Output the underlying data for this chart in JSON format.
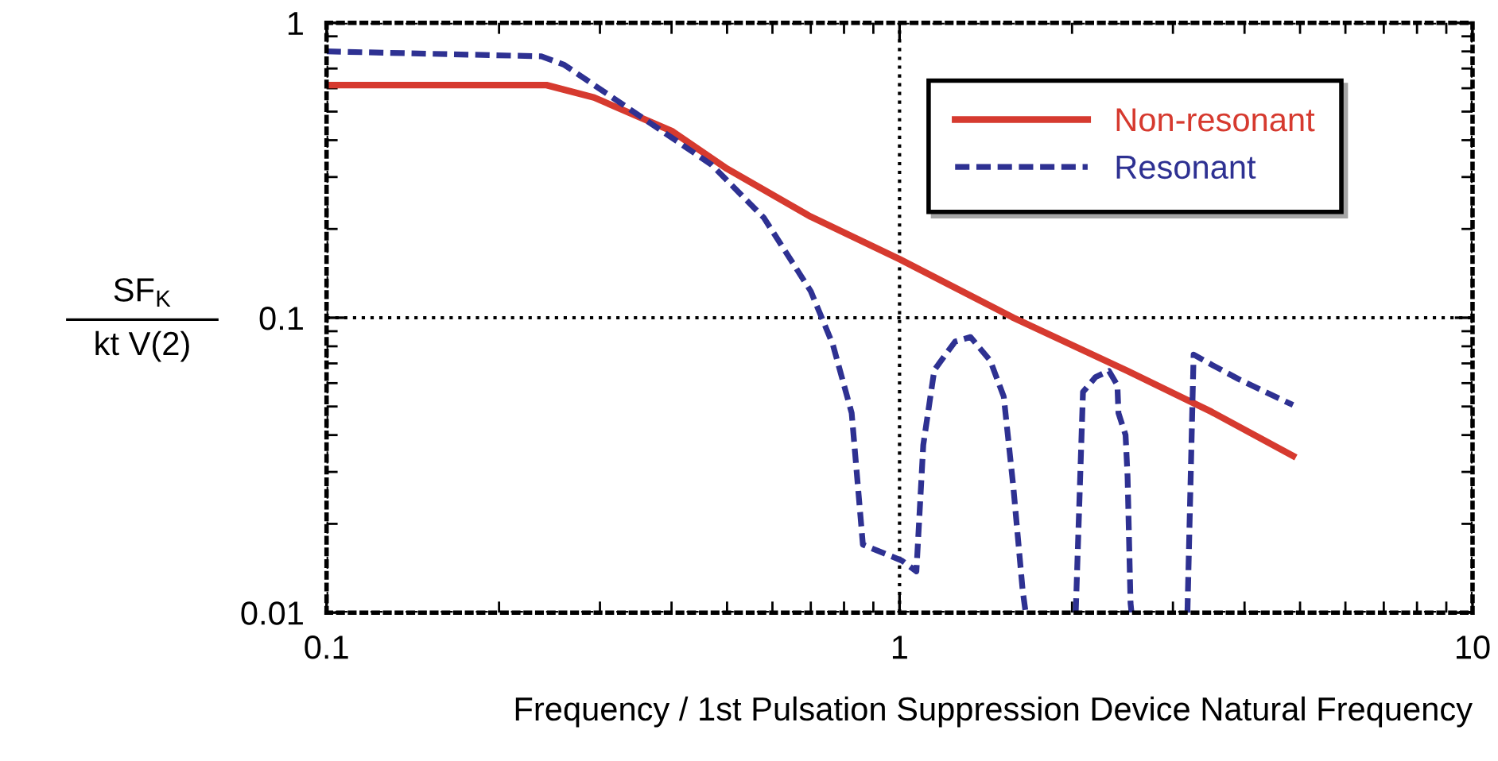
{
  "chart_data": {
    "type": "line",
    "xlabel": "Frequency / 1st Pulsation Suppression Device Natural Frequency",
    "ylabel": "SF$_{K}$\nkt V(2)",
    "log": "xy",
    "xlim": [
      0.1,
      10
    ],
    "ylim": [
      0.01,
      1
    ],
    "xticks": [
      0.1,
      1,
      10
    ],
    "yticks": [
      0.01,
      0.1,
      1
    ],
    "grid": true,
    "legend": "top right",
    "series": [
      {
        "name": "Non-resonant",
        "color": "#d63a2f",
        "line_style": "solid",
        "x": [
          0.1,
          0.242,
          0.293,
          0.4,
          0.5,
          0.7,
          1.0,
          1.58,
          2.5,
          3.5,
          4.86
        ],
        "values": [
          0.615,
          0.615,
          0.558,
          0.43,
          0.32,
          0.22,
          0.158,
          0.1,
          0.066,
          0.048,
          0.034
        ]
      },
      {
        "name": "Resonant",
        "color": "#2e3192",
        "line_style": "dashed",
        "x": [
          0.1,
          0.237,
          0.26,
          0.378,
          0.47,
          0.58,
          0.7,
          0.765,
          0.825,
          0.863,
          1.01,
          1.07,
          1.1,
          1.15,
          1.25,
          1.33,
          1.44,
          1.52,
          1.58,
          1.64,
          1.66,
          2.0,
          2.03,
          2.09,
          2.2,
          2.32,
          2.4,
          2.41,
          2.48,
          2.5,
          2.53,
          2.54,
          3.1,
          3.18,
          3.26,
          3.52,
          3.9,
          4.35,
          4.86
        ],
        "values": [
          0.8,
          0.77,
          0.72,
          0.44,
          0.33,
          0.218,
          0.123,
          0.081,
          0.0475,
          0.017,
          0.015,
          0.0138,
          0.037,
          0.0665,
          0.083,
          0.086,
          0.0715,
          0.054,
          0.0266,
          0.0119,
          0.01,
          null,
          0.01,
          0.056,
          0.063,
          0.066,
          0.059,
          0.0475,
          0.04,
          0.029,
          0.0108,
          0.01,
          null,
          0.01,
          0.075,
          0.069,
          0.062,
          0.056,
          0.0506
        ]
      }
    ]
  }
}
